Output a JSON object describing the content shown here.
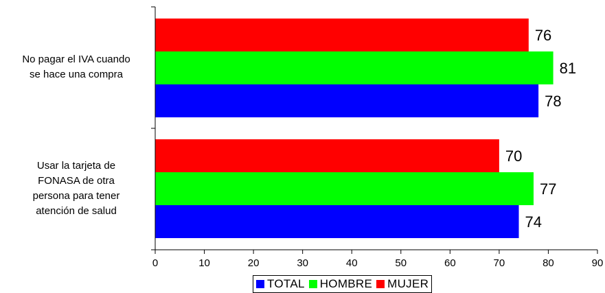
{
  "chart_data": {
    "type": "bar",
    "orientation": "horizontal",
    "categories": [
      "No pagar el IVA cuando se hace una compra",
      "Usar la tarjeta de FONASA de otra persona para tener atención de salud"
    ],
    "category_lines": [
      [
        "No pagar el IVA cuando",
        "se hace una compra"
      ],
      [
        "Usar la tarjeta de",
        "FONASA de otra",
        "persona para tener",
        "atención de salud"
      ]
    ],
    "series": [
      {
        "name": "MUJER",
        "color": "#ff0000",
        "values": [
          76,
          70
        ]
      },
      {
        "name": "HOMBRE",
        "color": "#00ff00",
        "values": [
          81,
          77
        ]
      },
      {
        "name": "TOTAL",
        "color": "#0000ff",
        "values": [
          78,
          74
        ]
      }
    ],
    "legend_order": [
      "TOTAL",
      "HOMBRE",
      "MUJER"
    ],
    "xlim": [
      0,
      90
    ],
    "x_ticks": [
      0,
      10,
      20,
      30,
      40,
      50,
      60,
      70,
      80,
      90
    ],
    "title": "",
    "xlabel": "",
    "ylabel": "",
    "grid": false,
    "legend_position": "bottom"
  }
}
